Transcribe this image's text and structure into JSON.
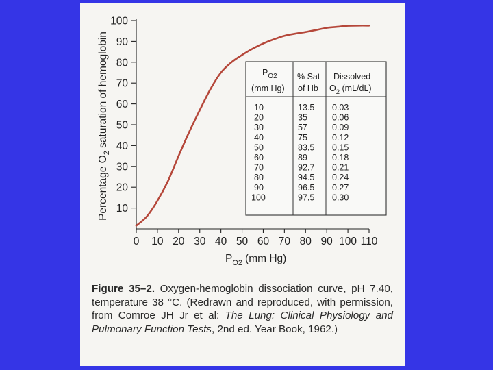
{
  "chart_data": {
    "type": "line",
    "xlabel": {
      "main": "P",
      "sub": "O2",
      "unit": "(mm Hg)"
    },
    "ylabel": {
      "part1": "Percentage O",
      "sub": "2",
      "part2": " saturation of hemoglobin"
    },
    "xlim": [
      0,
      110
    ],
    "ylim": [
      0,
      100
    ],
    "x_ticks": [
      0,
      10,
      20,
      30,
      40,
      50,
      60,
      70,
      80,
      90,
      100,
      110
    ],
    "y_ticks": [
      10,
      20,
      30,
      40,
      50,
      60,
      70,
      80,
      90,
      100
    ],
    "grid": false,
    "series": [
      {
        "color": "#b5473a",
        "x": [
          0,
          5,
          10,
          15,
          20,
          25,
          30,
          35,
          40,
          45,
          50,
          55,
          60,
          65,
          70,
          75,
          80,
          85,
          90,
          95,
          100,
          105,
          110
        ],
        "y": [
          1.5,
          6,
          13.5,
          23,
          35,
          46.5,
          57,
          67,
          75,
          80,
          83.5,
          86.5,
          89,
          91,
          92.7,
          93.7,
          94.5,
          95.5,
          96.5,
          97,
          97.5,
          97.6,
          97.6
        ]
      }
    ],
    "table": {
      "headers": [
        {
          "line1": "P",
          "line1_sub": "O2",
          "line2": "(mm Hg)"
        },
        {
          "line1": "% Sat",
          "line2": "of Hb"
        },
        {
          "line1": "Dissolved",
          "line2": "O",
          "line2_sub": "2",
          "line2_rest": " (mL/dL)"
        }
      ],
      "rows": [
        [
          "10",
          "13.5",
          "0.03"
        ],
        [
          "20",
          "35",
          "0.06"
        ],
        [
          "30",
          "57",
          "0.09"
        ],
        [
          "40",
          "75",
          "0.12"
        ],
        [
          "50",
          "83.5",
          "0.15"
        ],
        [
          "60",
          "89",
          "0.18"
        ],
        [
          "70",
          "92.7",
          "0.21"
        ],
        [
          "80",
          "94.5",
          "0.24"
        ],
        [
          "90",
          "96.5",
          "0.27"
        ],
        [
          "100",
          "97.5",
          "0.30"
        ]
      ]
    }
  },
  "caption": {
    "label": "Figure 35–2.",
    "text1": " Oxygen-hemoglobin dissociation curve, pH 7.40, temperature 38 °C. (Redrawn and reproduced, with permission, from Comroe JH Jr et al: ",
    "italic": "The Lung: Clinical Physiology and Pulmonary Function Tests",
    "text2": ", 2nd ed. Year Book, 1962.)"
  },
  "colors": {
    "background": "#3535e6",
    "page": "#f6f5f2",
    "curve": "#b5473a",
    "ink": "#222222"
  }
}
